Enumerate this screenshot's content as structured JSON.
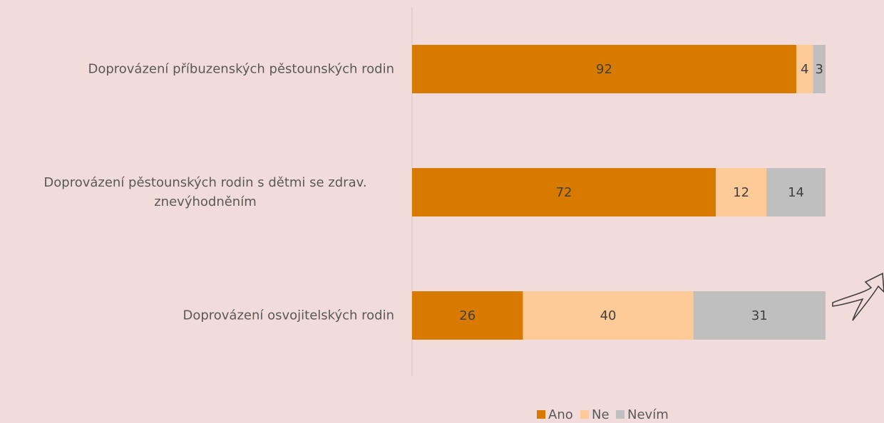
{
  "chart_data": {
    "type": "bar",
    "orientation": "horizontal",
    "stacked": "percent",
    "categories": [
      "Doprovázení příbuzenských pěstounských rodin",
      "Doprovázení pěstounských rodin s dětmi se zdrav. znevýhodněním",
      "Doprovázení osvojitelských rodin"
    ],
    "series": [
      {
        "name": "Ano",
        "color": "#d97a00",
        "values": [
          92,
          72,
          26
        ]
      },
      {
        "name": "Ne",
        "color": "#fdca98",
        "values": [
          4,
          12,
          40
        ]
      },
      {
        "name": "Nevím",
        "color": "#bfbfbf",
        "values": [
          3,
          14,
          31
        ]
      }
    ],
    "legend": "bottom"
  }
}
